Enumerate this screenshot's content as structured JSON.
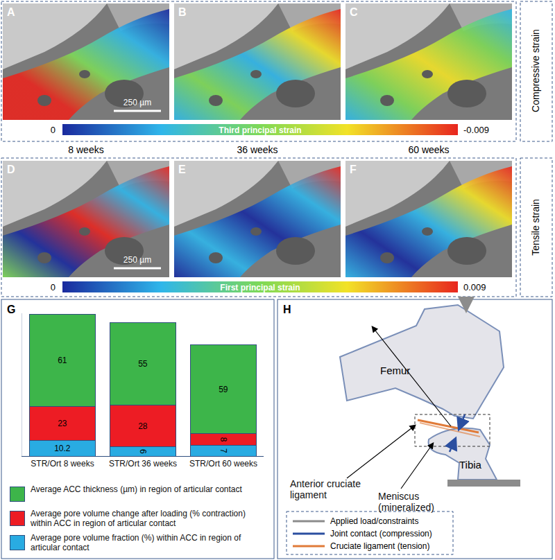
{
  "strain_maps": {
    "timepoints": [
      "8 weeks",
      "36 weeks",
      "60 weeks"
    ],
    "scale_bar": "250 µm",
    "rows": [
      {
        "title": "Compressive strain",
        "panels": [
          "A",
          "B",
          "C"
        ],
        "colorbar": {
          "label": "Third principal strain",
          "range": [
            0,
            -0.009
          ]
        }
      },
      {
        "title": "Tensile strain",
        "panels": [
          "D",
          "E",
          "F"
        ],
        "colorbar": {
          "label": "First principal strain",
          "range": [
            0,
            0.009
          ]
        }
      }
    ]
  },
  "chart_panel_label": "G",
  "chart_data": {
    "type": "bar",
    "stacked": true,
    "data_labels": true,
    "tick_labels": "x",
    "categories": [
      "STR/Ort 8 weeks",
      "STR/Ort 36 weeks",
      "STR/Ort 60 weeks"
    ],
    "ylim": [
      0,
      95
    ],
    "series": [
      {
        "name": "Average ACC thickness (µm) in region of articular contact",
        "color": "#3db54a",
        "values": [
          61,
          55,
          59
        ]
      },
      {
        "name": "Average pore volume change after loading (% contraction) within ACC in region of articular contact",
        "color": "#ed1c24",
        "values": [
          23,
          28,
          8
        ]
      },
      {
        "name": "Average pore volume fraction (%) within ACC in region of articular contact",
        "color": "#29abe2",
        "values": [
          10.2,
          6,
          7
        ]
      }
    ]
  },
  "diagram": {
    "label": "H",
    "nodes": [
      {
        "label": "Femur"
      },
      {
        "label": "Tibia"
      }
    ],
    "annotations": [
      "Anterior cruciate ligament",
      "Meniscus (mineralized)"
    ],
    "legend": [
      {
        "label": "Applied load/constraints",
        "color": "#8c8c8c"
      },
      {
        "label": "Joint contact (compression)",
        "color": "#2b4fa0"
      },
      {
        "label": "Cruciate ligament (tension)",
        "color": "#e07b39"
      }
    ]
  }
}
